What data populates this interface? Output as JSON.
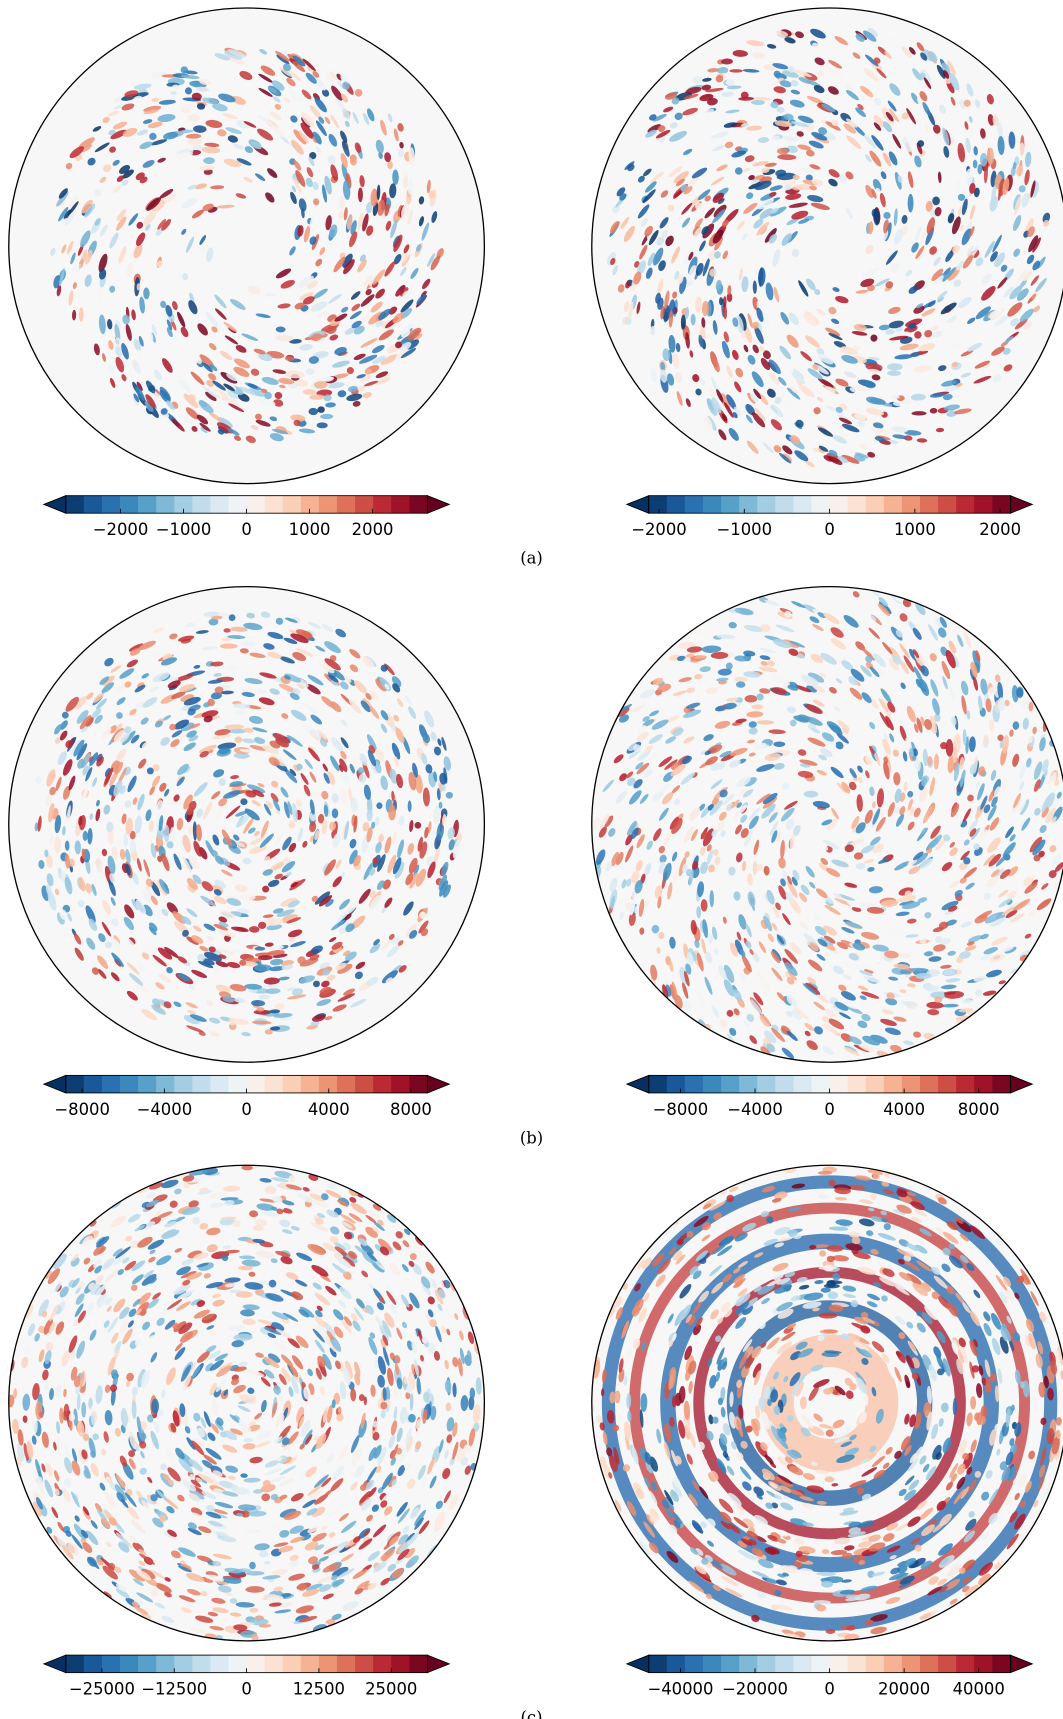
{
  "figure": {
    "panels": [
      {
        "label": "(a)",
        "plots": [
          {
            "colorbar": {
              "lim": [
                -2870,
                2870
              ],
              "ticks": [
                {
                  "value": -2000,
                  "label": "−2000"
                },
                {
                  "value": -1000,
                  "label": "−1000"
                },
                0,
                1000,
                2000
              ]
            }
          },
          {
            "colorbar": {
              "lim": [
                -2120,
                2120
              ],
              "ticks": [
                {
                  "value": -2000,
                  "label": "−2000"
                },
                {
                  "value": -1000,
                  "label": "−1000"
                },
                0,
                1000,
                2000
              ]
            }
          }
        ]
      },
      {
        "label": "(b)",
        "plots": [
          {
            "colorbar": {
              "lim": [
                -8800,
                8800
              ],
              "ticks": [
                {
                  "value": -8000,
                  "label": "−8000"
                },
                {
                  "value": -4000,
                  "label": "−4000"
                },
                0,
                4000,
                8000
              ]
            }
          },
          {
            "colorbar": {
              "lim": [
                -9700,
                9700
              ],
              "ticks": [
                {
                  "value": -8000,
                  "label": "−8000"
                },
                {
                  "value": -4000,
                  "label": "−4000"
                },
                0,
                4000,
                8000
              ]
            }
          }
        ]
      },
      {
        "label": "(c)",
        "plots": [
          {
            "colorbar": {
              "lim": [
                -31250,
                31250
              ],
              "ticks": [
                {
                  "value": -25000,
                  "label": "−25000"
                },
                {
                  "value": -12500,
                  "label": "−12500"
                },
                0,
                12500,
                25000
              ]
            }
          },
          {
            "colorbar": {
              "lim": [
                -48500,
                48500
              ],
              "ticks": [
                {
                  "value": -40000,
                  "label": "−40000"
                },
                {
                  "value": -20000,
                  "label": "−20000"
                },
                0,
                20000,
                40000
              ]
            }
          }
        ]
      }
    ]
  }
}
